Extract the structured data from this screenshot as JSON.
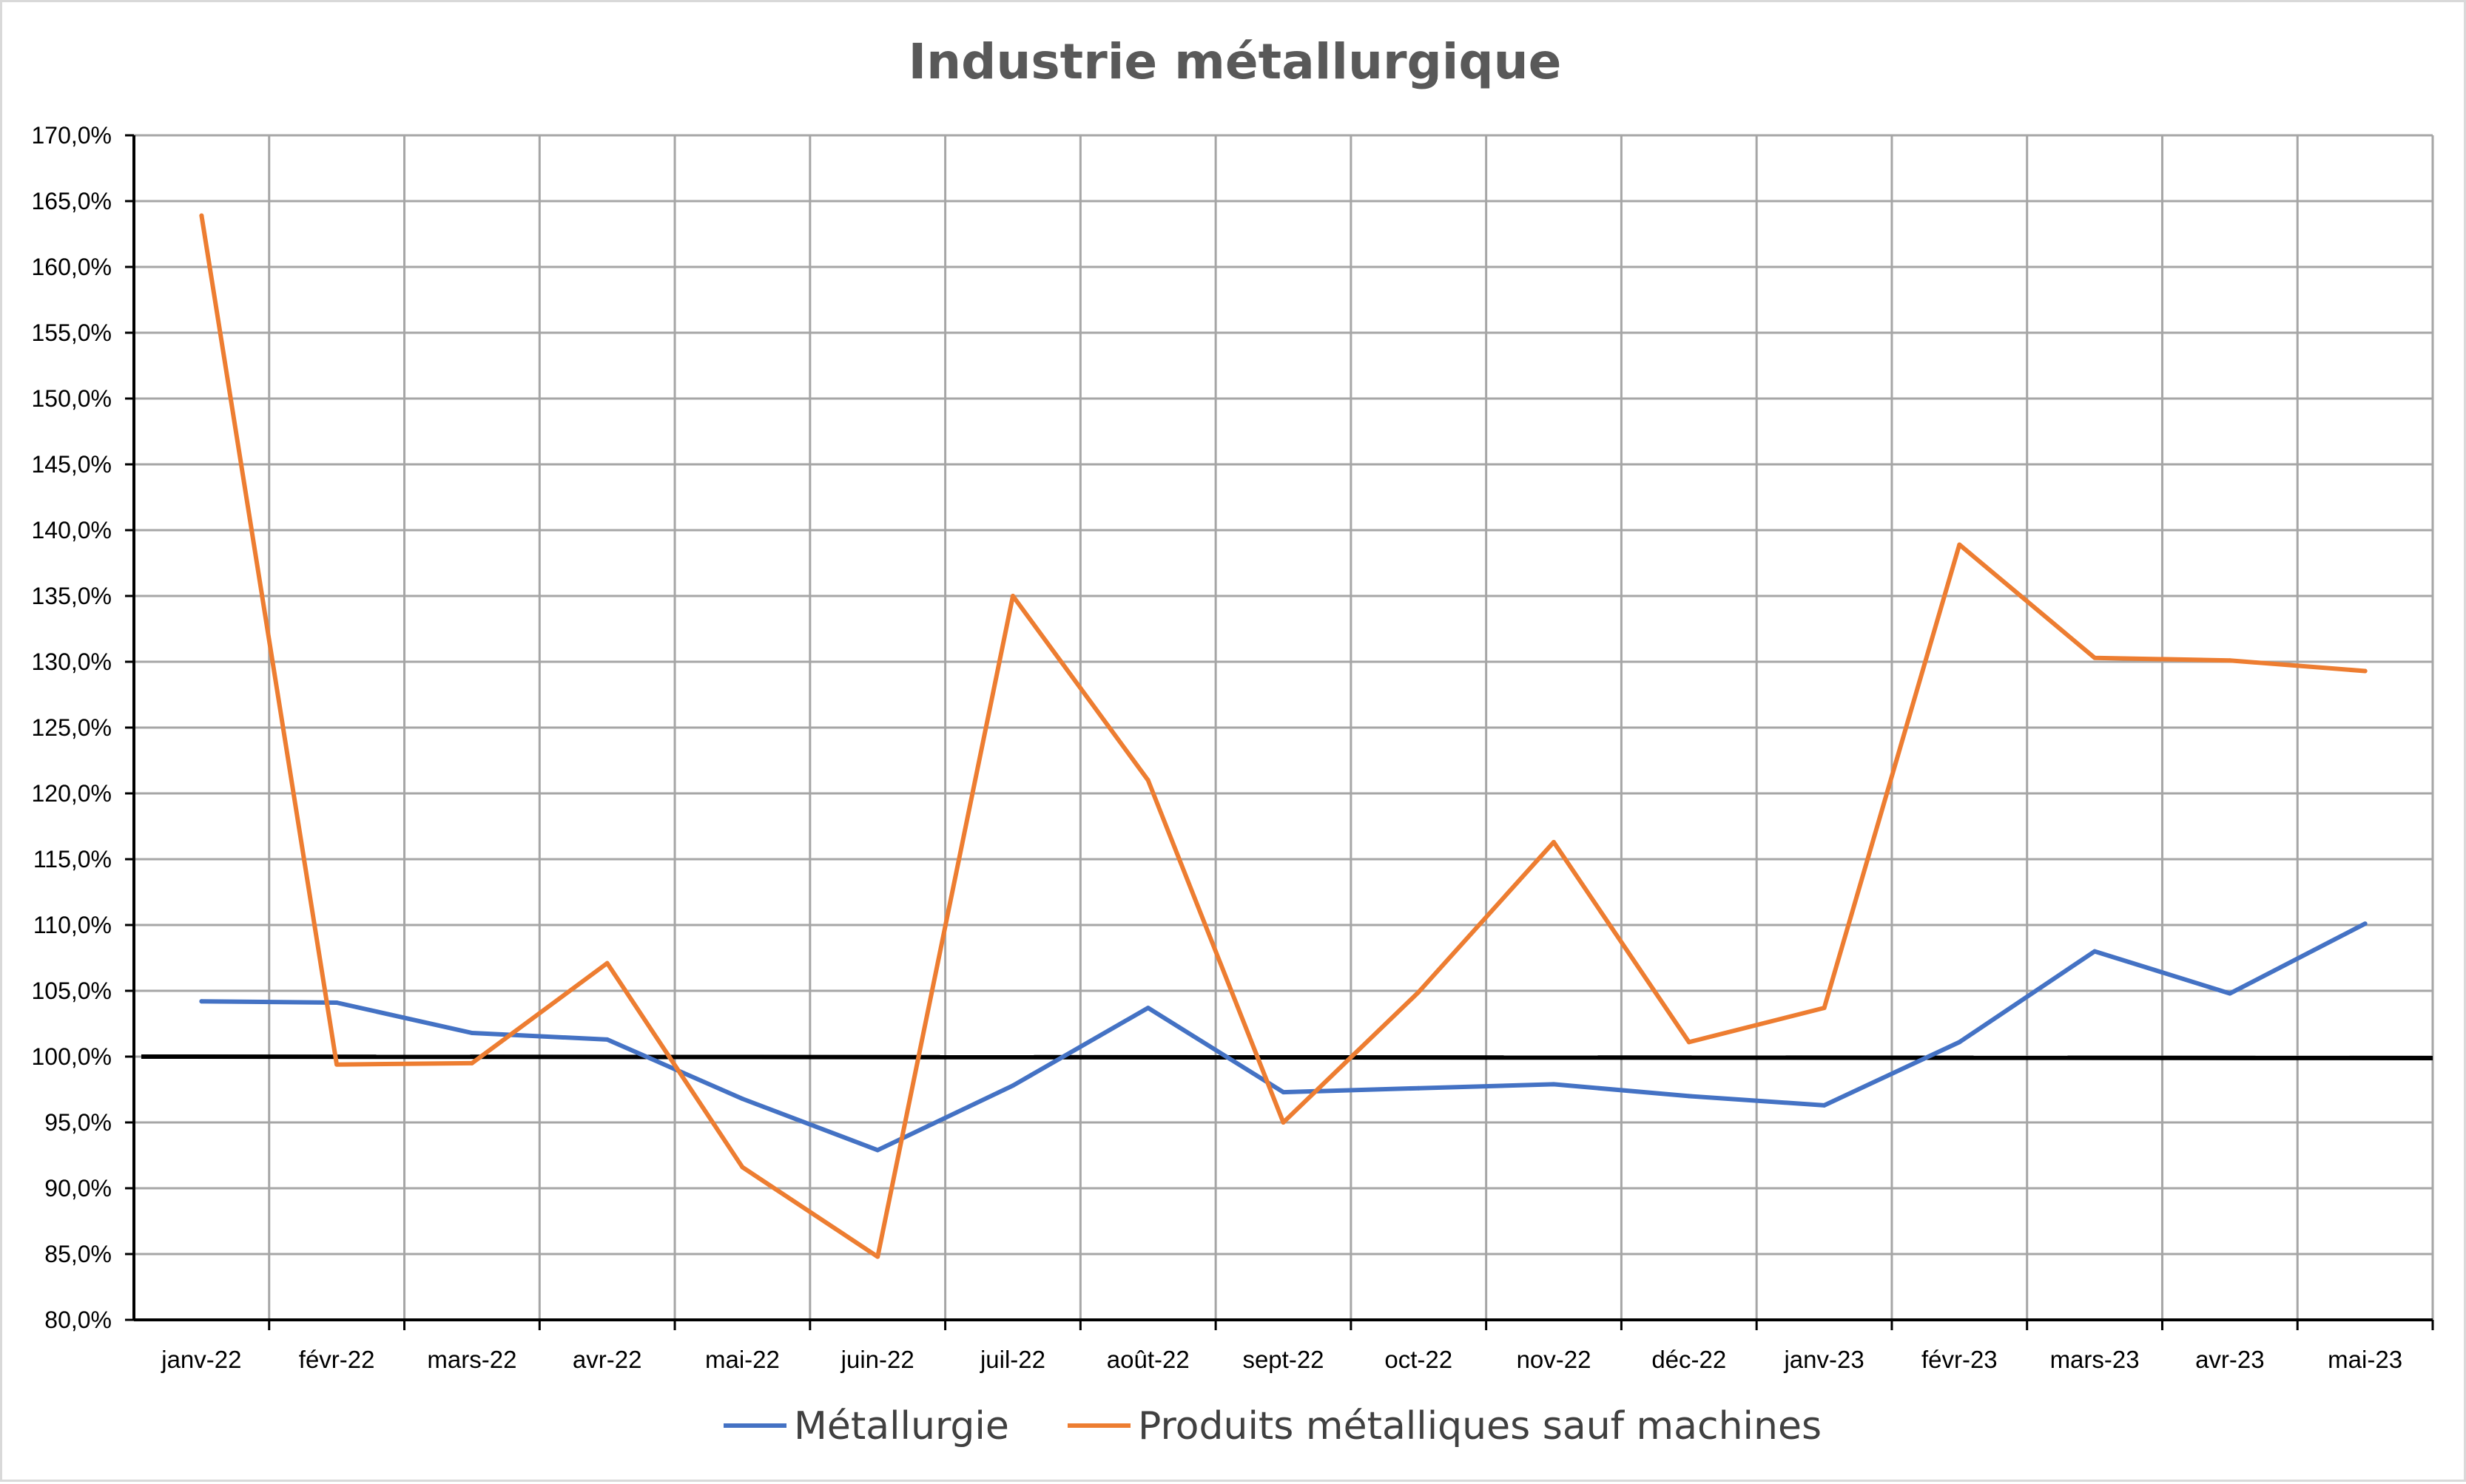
{
  "chart_data": {
    "type": "line",
    "title": "Industrie métallurgique",
    "xlabel": "",
    "ylabel": "",
    "categories": [
      "janv-22",
      "févr-22",
      "mars-22",
      "avr-22",
      "mai-22",
      "juin-22",
      "juil-22",
      "août-22",
      "sept-22",
      "oct-22",
      "nov-22",
      "déc-22",
      "janv-23",
      "févr-23",
      "mars-23",
      "avr-23",
      "mai-23"
    ],
    "ylim": [
      80,
      170
    ],
    "ytick_step": 5,
    "ytick_format": "percent-1-decimal-comma",
    "grid": true,
    "legend_position": "bottom",
    "reference_line": {
      "value": 100,
      "color": "#000000"
    },
    "series": [
      {
        "name": "Métallurgie",
        "color": "#4472C4",
        "values": [
          104.2,
          104.1,
          101.8,
          101.3,
          96.8,
          92.9,
          97.8,
          103.7,
          97.3,
          97.6,
          97.9,
          97.0,
          96.3,
          101.1,
          108.0,
          104.8,
          110.1
        ]
      },
      {
        "name": "Produits métalliques sauf machines",
        "color": "#ED7D31",
        "values": [
          163.9,
          99.4,
          99.5,
          107.1,
          91.6,
          84.8,
          135.0,
          121.0,
          95.0,
          104.9,
          116.3,
          101.1,
          103.7,
          138.9,
          130.3,
          130.1,
          129.3
        ]
      }
    ]
  }
}
